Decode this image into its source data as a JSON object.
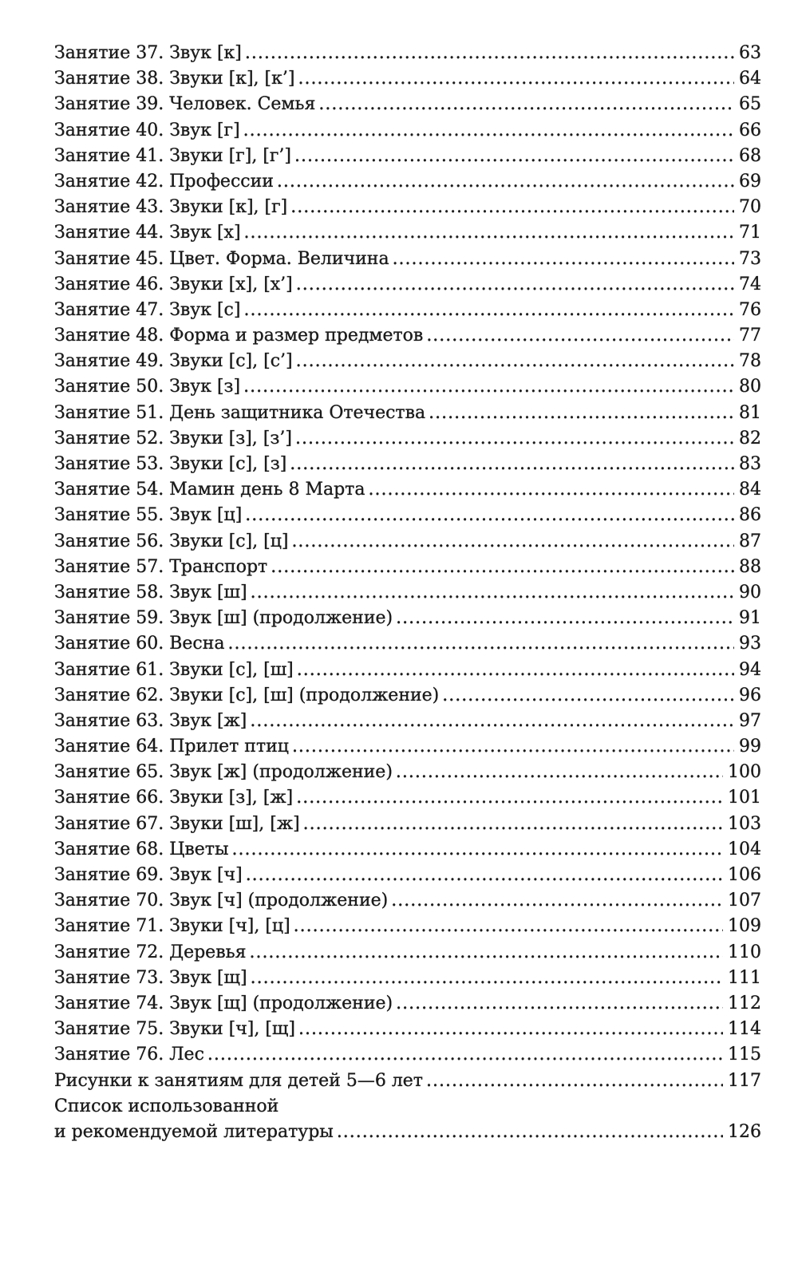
{
  "entries": [
    {
      "title": "Занятие 37. Звук [к]",
      "page": "63"
    },
    {
      "title": "Занятие 38. Звуки [к], [к’]",
      "page": "64"
    },
    {
      "title": "Занятие 39. Человек. Семья",
      "page": "65"
    },
    {
      "title": "Занятие 40. Звук [г]",
      "page": "66"
    },
    {
      "title": "Занятие 41. Звуки [г], [г’]",
      "page": "68"
    },
    {
      "title": "Занятие 42. Профессии",
      "page": "69"
    },
    {
      "title": "Занятие 43. Звуки [к], [г]",
      "page": "70"
    },
    {
      "title": "Занятие 44. Звук [х]",
      "page": "71"
    },
    {
      "title": "Занятие 45. Цвет. Форма. Величина",
      "page": "73"
    },
    {
      "title": "Занятие 46. Звуки [х], [х’]",
      "page": "74"
    },
    {
      "title": "Занятие 47. Звук [с]",
      "page": "76"
    },
    {
      "title": "Занятие 48. Форма и размер предметов",
      "page": "77"
    },
    {
      "title": "Занятие 49. Звуки [с], [с’]",
      "page": "78"
    },
    {
      "title": "Занятие 50. Звук [з]",
      "page": "80"
    },
    {
      "title": "Занятие 51. День защитника Отечества",
      "page": "81"
    },
    {
      "title": "Занятие 52. Звуки [з], [з’]",
      "page": "82"
    },
    {
      "title": "Занятие 53. Звуки [с], [з]",
      "page": "83"
    },
    {
      "title": "Занятие 54. Мамин день 8 Марта",
      "page": "84"
    },
    {
      "title": "Занятие 55. Звук [ц]",
      "page": "86"
    },
    {
      "title": "Занятие 56. Звуки [с], [ц]",
      "page": "87"
    },
    {
      "title": "Занятие 57. Транспорт",
      "page": "88"
    },
    {
      "title": "Занятие 58. Звук [ш]",
      "page": "90"
    },
    {
      "title": "Занятие 59. Звук [ш] (продолжение)",
      "page": "91"
    },
    {
      "title": "Занятие 60. Весна",
      "page": "93"
    },
    {
      "title": "Занятие 61. Звуки [с], [ш]",
      "page": "94"
    },
    {
      "title": "Занятие 62. Звуки [с], [ш] (продолжение)",
      "page": "96"
    },
    {
      "title": "Занятие 63. Звук [ж]",
      "page": "97"
    },
    {
      "title": "Занятие 64. Прилет птиц",
      "page": "99"
    },
    {
      "title": "Занятие 65. Звук [ж] (продолжение)",
      "page": "100"
    },
    {
      "title": "Занятие 66. Звуки [з], [ж]",
      "page": "101"
    },
    {
      "title": "Занятие 67. Звуки [ш], [ж]",
      "page": "103"
    },
    {
      "title": "Занятие 68. Цветы",
      "page": "104"
    },
    {
      "title": "Занятие 69. Звук [ч]",
      "page": "106"
    },
    {
      "title": "Занятие 70. Звук [ч] (продолжение)",
      "page": "107"
    },
    {
      "title": "Занятие 71. Звуки [ч], [ц]",
      "page": "109"
    },
    {
      "title": "Занятие 72. Деревья",
      "page": "110"
    },
    {
      "title": "Занятие 73. Звук [щ]",
      "page": "111"
    },
    {
      "title": "Занятие 74. Звук [щ] (продолжение)",
      "page": "112"
    },
    {
      "title": "Занятие 75. Звуки [ч], [щ]",
      "page": "114"
    },
    {
      "title": "Занятие 76. Лес",
      "page": "115"
    },
    {
      "title": "Рисунки к занятиям для детей 5—6 лет",
      "page": "117"
    }
  ],
  "literature": {
    "line1": "Список использованной",
    "line2": "и рекомендуемой литературы",
    "page": "126"
  }
}
